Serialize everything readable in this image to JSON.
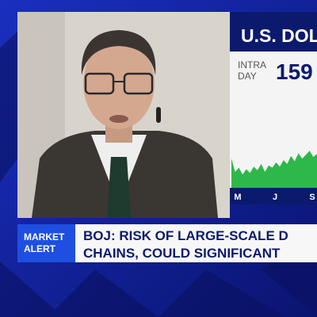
{
  "panel": {
    "title": "U.S. DOLL",
    "period_lines": [
      "INTRA",
      "DAY"
    ],
    "price": "159"
  },
  "chart": {
    "type": "area",
    "values": [
      55,
      30,
      38,
      25,
      35,
      28,
      40,
      33,
      45,
      30,
      42,
      38,
      48,
      40,
      52,
      45,
      60,
      50,
      65,
      55,
      62,
      70,
      58,
      64
    ],
    "ylim": [
      0,
      100
    ],
    "x_labels": [
      "M",
      "J",
      "S"
    ],
    "color": "#2fb84a"
  },
  "alert": {
    "tag_lines": [
      "MARKET",
      "ALERT"
    ],
    "headline_lines": [
      "BOJ: RISK OF LARGE-SCALE D",
      "CHAINS, COULD SIGNIFICANT"
    ]
  }
}
